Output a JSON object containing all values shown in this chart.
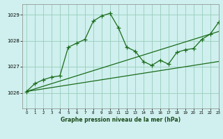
{
  "title": "Graphe pression niveau de la mer (hPa)",
  "bg_color": "#cff0ee",
  "grid_color": "#99ccbb",
  "line_color": "#1a6b1a",
  "xlim": [
    -0.5,
    23
  ],
  "ylim": [
    1025.4,
    1029.4
  ],
  "yticks": [
    1026,
    1027,
    1028,
    1029
  ],
  "xticks": [
    0,
    1,
    2,
    3,
    4,
    5,
    6,
    7,
    8,
    9,
    10,
    11,
    12,
    13,
    14,
    15,
    16,
    17,
    18,
    19,
    20,
    21,
    22,
    23
  ],
  "trend1_x": [
    0,
    23
  ],
  "trend1_y": [
    1026.05,
    1027.2
  ],
  "trend2_x": [
    0,
    23
  ],
  "trend2_y": [
    1026.05,
    1028.35
  ],
  "main_x": [
    0,
    1,
    2,
    3,
    4,
    5,
    6,
    7,
    8,
    9,
    10,
    11,
    12,
    13,
    14,
    15,
    16,
    17,
    18,
    19,
    20,
    21,
    22,
    23
  ],
  "main_y": [
    1026.05,
    1026.35,
    1026.5,
    1026.6,
    1026.65,
    1027.75,
    1027.9,
    1028.05,
    1028.75,
    1028.95,
    1029.05,
    1028.5,
    1027.75,
    1027.6,
    1027.2,
    1027.05,
    1027.25,
    1027.1,
    1027.55,
    1027.65,
    1027.7,
    1028.05,
    1028.25,
    1028.7
  ]
}
